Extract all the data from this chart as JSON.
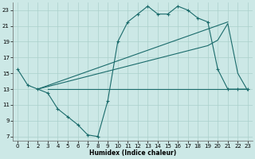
{
  "background_color": "#cce8e6",
  "grid_color": "#aad0cc",
  "line_color": "#1a6b6b",
  "xlabel": "Humidex (Indice chaleur)",
  "xlim": [
    -0.5,
    23.5
  ],
  "ylim": [
    6.5,
    24.0
  ],
  "yticks": [
    7,
    9,
    11,
    13,
    15,
    17,
    19,
    21,
    23
  ],
  "xticks": [
    0,
    1,
    2,
    3,
    4,
    5,
    6,
    7,
    8,
    9,
    10,
    11,
    12,
    13,
    14,
    15,
    16,
    17,
    18,
    19,
    20,
    21,
    22,
    23
  ],
  "series1_x": [
    0,
    1,
    2,
    3,
    4,
    5,
    6,
    7,
    8,
    9,
    10,
    11,
    12,
    13,
    14,
    15,
    16,
    17,
    18,
    19,
    20,
    21,
    22,
    23
  ],
  "series1_y": [
    15.5,
    13.5,
    13.0,
    12.5,
    10.5,
    9.5,
    8.5,
    7.2,
    7.0,
    11.5,
    19.0,
    21.5,
    22.5,
    23.5,
    22.5,
    22.5,
    23.5,
    23.0,
    22.0,
    21.5,
    15.5,
    13.0,
    13.0,
    13.0
  ],
  "series2_x": [
    2,
    21
  ],
  "series2_y": [
    13.0,
    21.5
  ],
  "series3_x": [
    2,
    19,
    20,
    21,
    22,
    23
  ],
  "series3_y": [
    13.0,
    18.5,
    19.2,
    21.3,
    15.0,
    12.8
  ],
  "series4_x": [
    3,
    23
  ],
  "series4_y": [
    13.0,
    13.0
  ]
}
